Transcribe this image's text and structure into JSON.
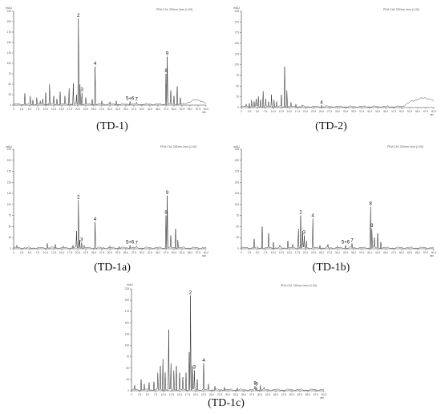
{
  "header_text": "PDA Ch1 330nm 4nm (1.00)",
  "y_unit": "mAU",
  "x_unit": "min",
  "chart_data": [
    {
      "type": "line",
      "title": "(TD-1)",
      "xlim": [
        0,
        60
      ],
      "ylim": [
        0,
        225
      ],
      "x_ticks": [
        "0",
        "2.5",
        "5.0",
        "7.5",
        "10.0",
        "12.5",
        "15.0",
        "17.5",
        "20.0",
        "22.5",
        "25.0",
        "27.5",
        "30.0",
        "32.5",
        "35.0",
        "37.5",
        "40.0",
        "42.5",
        "45.0",
        "47.5",
        "50.0",
        "52.5",
        "55.0",
        "57.5",
        "60.0"
      ],
      "y_ticks": [
        "0",
        "25",
        "50",
        "75",
        "100",
        "125",
        "150",
        "175",
        "200",
        "225"
      ],
      "peaks": [
        {
          "x": 3.5,
          "y": 28
        },
        {
          "x": 5.2,
          "y": 22
        },
        {
          "x": 6.0,
          "y": 12
        },
        {
          "x": 7.2,
          "y": 18
        },
        {
          "x": 8.3,
          "y": 10
        },
        {
          "x": 9.1,
          "y": 15
        },
        {
          "x": 10.0,
          "y": 30
        },
        {
          "x": 11.2,
          "y": 50
        },
        {
          "x": 12.5,
          "y": 22
        },
        {
          "x": 13.5,
          "y": 15
        },
        {
          "x": 14.5,
          "y": 32
        },
        {
          "x": 16.0,
          "y": 22
        },
        {
          "x": 17.3,
          "y": 40
        },
        {
          "x": 18.6,
          "y": 52
        },
        {
          "x": 19.6,
          "y": 25
        },
        {
          "x": 20.2,
          "y": 208,
          "label": "2"
        },
        {
          "x": 20.7,
          "y": 50
        },
        {
          "x": 21.3,
          "y": 30,
          "label": "3"
        },
        {
          "x": 22.5,
          "y": 18
        },
        {
          "x": 24.5,
          "y": 14
        },
        {
          "x": 25.4,
          "y": 92,
          "label": "4"
        },
        {
          "x": 27.5,
          "y": 10
        },
        {
          "x": 30.0,
          "y": 8
        },
        {
          "x": 32.0,
          "y": 10
        },
        {
          "x": 36.3,
          "y": 9,
          "label": "5+6"
        },
        {
          "x": 38.3,
          "y": 7,
          "label": "7"
        },
        {
          "x": 47.5,
          "y": 75,
          "label": "8"
        },
        {
          "x": 47.9,
          "y": 116,
          "label": "9"
        },
        {
          "x": 49.0,
          "y": 35
        },
        {
          "x": 50.0,
          "y": 22
        },
        {
          "x": 51.0,
          "y": 45
        },
        {
          "x": 52.0,
          "y": 18
        }
      ],
      "drift": {
        "start": 53,
        "peak_x": 57.5,
        "peak_y": 10
      }
    },
    {
      "type": "line",
      "title": "(TD-2)",
      "xlim": [
        0,
        60
      ],
      "ylim": [
        0,
        225
      ],
      "x_ticks": [
        "0",
        "2.5",
        "5.0",
        "7.5",
        "10.0",
        "12.5",
        "15.0",
        "17.5",
        "20.0",
        "22.5",
        "25.0",
        "27.5",
        "30.0",
        "32.5",
        "35.0",
        "37.5",
        "40.0",
        "42.5",
        "45.0",
        "47.5",
        "50.0",
        "52.5",
        "55.0",
        "57.5",
        "60.0"
      ],
      "y_ticks": [
        "0",
        "25",
        "50",
        "75",
        "100",
        "125",
        "150",
        "175",
        "200",
        "225"
      ],
      "peaks": [
        {
          "x": 1.5,
          "y": 8
        },
        {
          "x": 2.5,
          "y": 10
        },
        {
          "x": 3.2,
          "y": 18
        },
        {
          "x": 4.0,
          "y": 14
        },
        {
          "x": 4.6,
          "y": 20
        },
        {
          "x": 5.3,
          "y": 26
        },
        {
          "x": 6.0,
          "y": 18
        },
        {
          "x": 6.8,
          "y": 38
        },
        {
          "x": 7.6,
          "y": 20
        },
        {
          "x": 8.5,
          "y": 14
        },
        {
          "x": 9.4,
          "y": 30
        },
        {
          "x": 10.2,
          "y": 18
        },
        {
          "x": 11.0,
          "y": 14
        },
        {
          "x": 12.5,
          "y": 30
        },
        {
          "x": 13.5,
          "y": 95
        },
        {
          "x": 14.2,
          "y": 40
        },
        {
          "x": 15.5,
          "y": 12
        },
        {
          "x": 17.0,
          "y": 8
        },
        {
          "x": 19.0,
          "y": 6
        },
        {
          "x": 25.0,
          "y": 5,
          "label": "4"
        }
      ],
      "drift": {
        "start": 50,
        "peak_x": 57.5,
        "peak_y": 20
      }
    },
    {
      "type": "line",
      "title": "(TD-1a)",
      "xlim": [
        0,
        60
      ],
      "ylim": [
        0,
        225
      ],
      "x_ticks": [
        "0",
        "2.5",
        "5.0",
        "7.5",
        "10.0",
        "12.5",
        "15.0",
        "17.5",
        "20.0",
        "22.5",
        "25.0",
        "27.5",
        "30.0",
        "32.5",
        "35.0",
        "37.5",
        "40.0",
        "42.5",
        "45.0",
        "47.5",
        "50.0",
        "52.5",
        "55.0",
        "57.5",
        "60.0"
      ],
      "y_ticks": [
        "0",
        "25",
        "50",
        "75",
        "100",
        "125",
        "150",
        "175",
        "200",
        "225"
      ],
      "peaks": [
        {
          "x": 1.0,
          "y": 8
        },
        {
          "x": 10.5,
          "y": 12
        },
        {
          "x": 13.0,
          "y": 10
        },
        {
          "x": 15.5,
          "y": 6
        },
        {
          "x": 18.5,
          "y": 8
        },
        {
          "x": 19.6,
          "y": 40
        },
        {
          "x": 20.2,
          "y": 110,
          "label": "2"
        },
        {
          "x": 20.6,
          "y": 20
        },
        {
          "x": 21.2,
          "y": 14,
          "label": "3"
        },
        {
          "x": 22.0,
          "y": 8
        },
        {
          "x": 25.4,
          "y": 60,
          "label": "4"
        },
        {
          "x": 30.0,
          "y": 6
        },
        {
          "x": 33.0,
          "y": 5
        },
        {
          "x": 36.3,
          "y": 8,
          "label": "5+6"
        },
        {
          "x": 38.3,
          "y": 6,
          "label": "7"
        },
        {
          "x": 47.5,
          "y": 75,
          "label": "8"
        },
        {
          "x": 47.9,
          "y": 120,
          "label": "9"
        },
        {
          "x": 49.0,
          "y": 30
        },
        {
          "x": 50.5,
          "y": 45
        },
        {
          "x": 51.2,
          "y": 20
        }
      ],
      "drift": null
    },
    {
      "type": "line",
      "title": "(TD-1b)",
      "xlim": [
        0,
        60
      ],
      "ylim": [
        0,
        225
      ],
      "x_ticks": [
        "0",
        "2.5",
        "5.0",
        "7.5",
        "10.0",
        "12.5",
        "15.0",
        "17.5",
        "20.0",
        "22.5",
        "25.0",
        "27.5",
        "30.0",
        "32.5",
        "35.0",
        "37.5",
        "40.0",
        "42.5",
        "45.0",
        "47.5",
        "50.0",
        "52.5",
        "55.0",
        "57.5",
        "60.0"
      ],
      "y_ticks": [
        "0",
        "25",
        "50",
        "75",
        "100",
        "125",
        "150",
        "175",
        "200",
        "225"
      ],
      "peaks": [
        {
          "x": 4.0,
          "y": 22
        },
        {
          "x": 6.5,
          "y": 50
        },
        {
          "x": 8.5,
          "y": 35
        },
        {
          "x": 10.0,
          "y": 15
        },
        {
          "x": 12.0,
          "y": 8
        },
        {
          "x": 14.5,
          "y": 18
        },
        {
          "x": 16.0,
          "y": 10
        },
        {
          "x": 17.8,
          "y": 45
        },
        {
          "x": 18.5,
          "y": 75,
          "label": "2"
        },
        {
          "x": 19.1,
          "y": 40
        },
        {
          "x": 19.6,
          "y": 30,
          "label": "3"
        },
        {
          "x": 20.3,
          "y": 18
        },
        {
          "x": 22.3,
          "y": 68,
          "label": "4"
        },
        {
          "x": 24.5,
          "y": 8
        },
        {
          "x": 27.0,
          "y": 10
        },
        {
          "x": 30.0,
          "y": 6
        },
        {
          "x": 32.5,
          "y": 8,
          "label": "5+6"
        },
        {
          "x": 34.5,
          "y": 12,
          "label": "7"
        },
        {
          "x": 40.3,
          "y": 95,
          "label": "8"
        },
        {
          "x": 40.7,
          "y": 45,
          "label": "9"
        },
        {
          "x": 41.5,
          "y": 25
        },
        {
          "x": 42.5,
          "y": 35
        },
        {
          "x": 43.5,
          "y": 15
        }
      ],
      "drift": null
    },
    {
      "type": "line",
      "title": "(TD-1c)",
      "xlim": [
        0,
        60
      ],
      "ylim": [
        0,
        225
      ],
      "x_ticks": [
        "0",
        "2.5",
        "5.0",
        "7.5",
        "10.0",
        "12.5",
        "15.0",
        "17.5",
        "20.0",
        "22.5",
        "25.0",
        "27.5",
        "30.0",
        "32.5",
        "35.0",
        "37.5",
        "40.0",
        "42.5",
        "45.0",
        "47.5",
        "50.0",
        "52.5",
        "55.0",
        "57.5",
        "60.0"
      ],
      "y_ticks": [
        "0",
        "25",
        "50",
        "75",
        "100",
        "125",
        "150",
        "175",
        "200",
        "225"
      ],
      "peaks": [
        {
          "x": 1.0,
          "y": 12
        },
        {
          "x": 3.0,
          "y": 25
        },
        {
          "x": 4.0,
          "y": 15
        },
        {
          "x": 5.5,
          "y": 18
        },
        {
          "x": 7.0,
          "y": 20
        },
        {
          "x": 8.2,
          "y": 40
        },
        {
          "x": 9.0,
          "y": 55
        },
        {
          "x": 9.8,
          "y": 70
        },
        {
          "x": 10.5,
          "y": 40
        },
        {
          "x": 11.6,
          "y": 135
        },
        {
          "x": 12.3,
          "y": 60
        },
        {
          "x": 13.2,
          "y": 45
        },
        {
          "x": 14.0,
          "y": 55
        },
        {
          "x": 15.0,
          "y": 40
        },
        {
          "x": 16.0,
          "y": 30
        },
        {
          "x": 17.0,
          "y": 40
        },
        {
          "x": 18.0,
          "y": 85
        },
        {
          "x": 18.4,
          "y": 210,
          "label": "2"
        },
        {
          "x": 19.0,
          "y": 55
        },
        {
          "x": 19.6,
          "y": 45,
          "label": "3"
        },
        {
          "x": 20.5,
          "y": 25
        },
        {
          "x": 22.5,
          "y": 60,
          "label": "4"
        },
        {
          "x": 24.0,
          "y": 15
        },
        {
          "x": 26.0,
          "y": 10
        },
        {
          "x": 29.0,
          "y": 8
        },
        {
          "x": 33.0,
          "y": 6
        },
        {
          "x": 38.5,
          "y": 10,
          "label": "8"
        },
        {
          "x": 39.0,
          "y": 8,
          "label": "9"
        },
        {
          "x": 40.2,
          "y": 12
        },
        {
          "x": 41.3,
          "y": 8
        }
      ],
      "drift": null
    }
  ]
}
